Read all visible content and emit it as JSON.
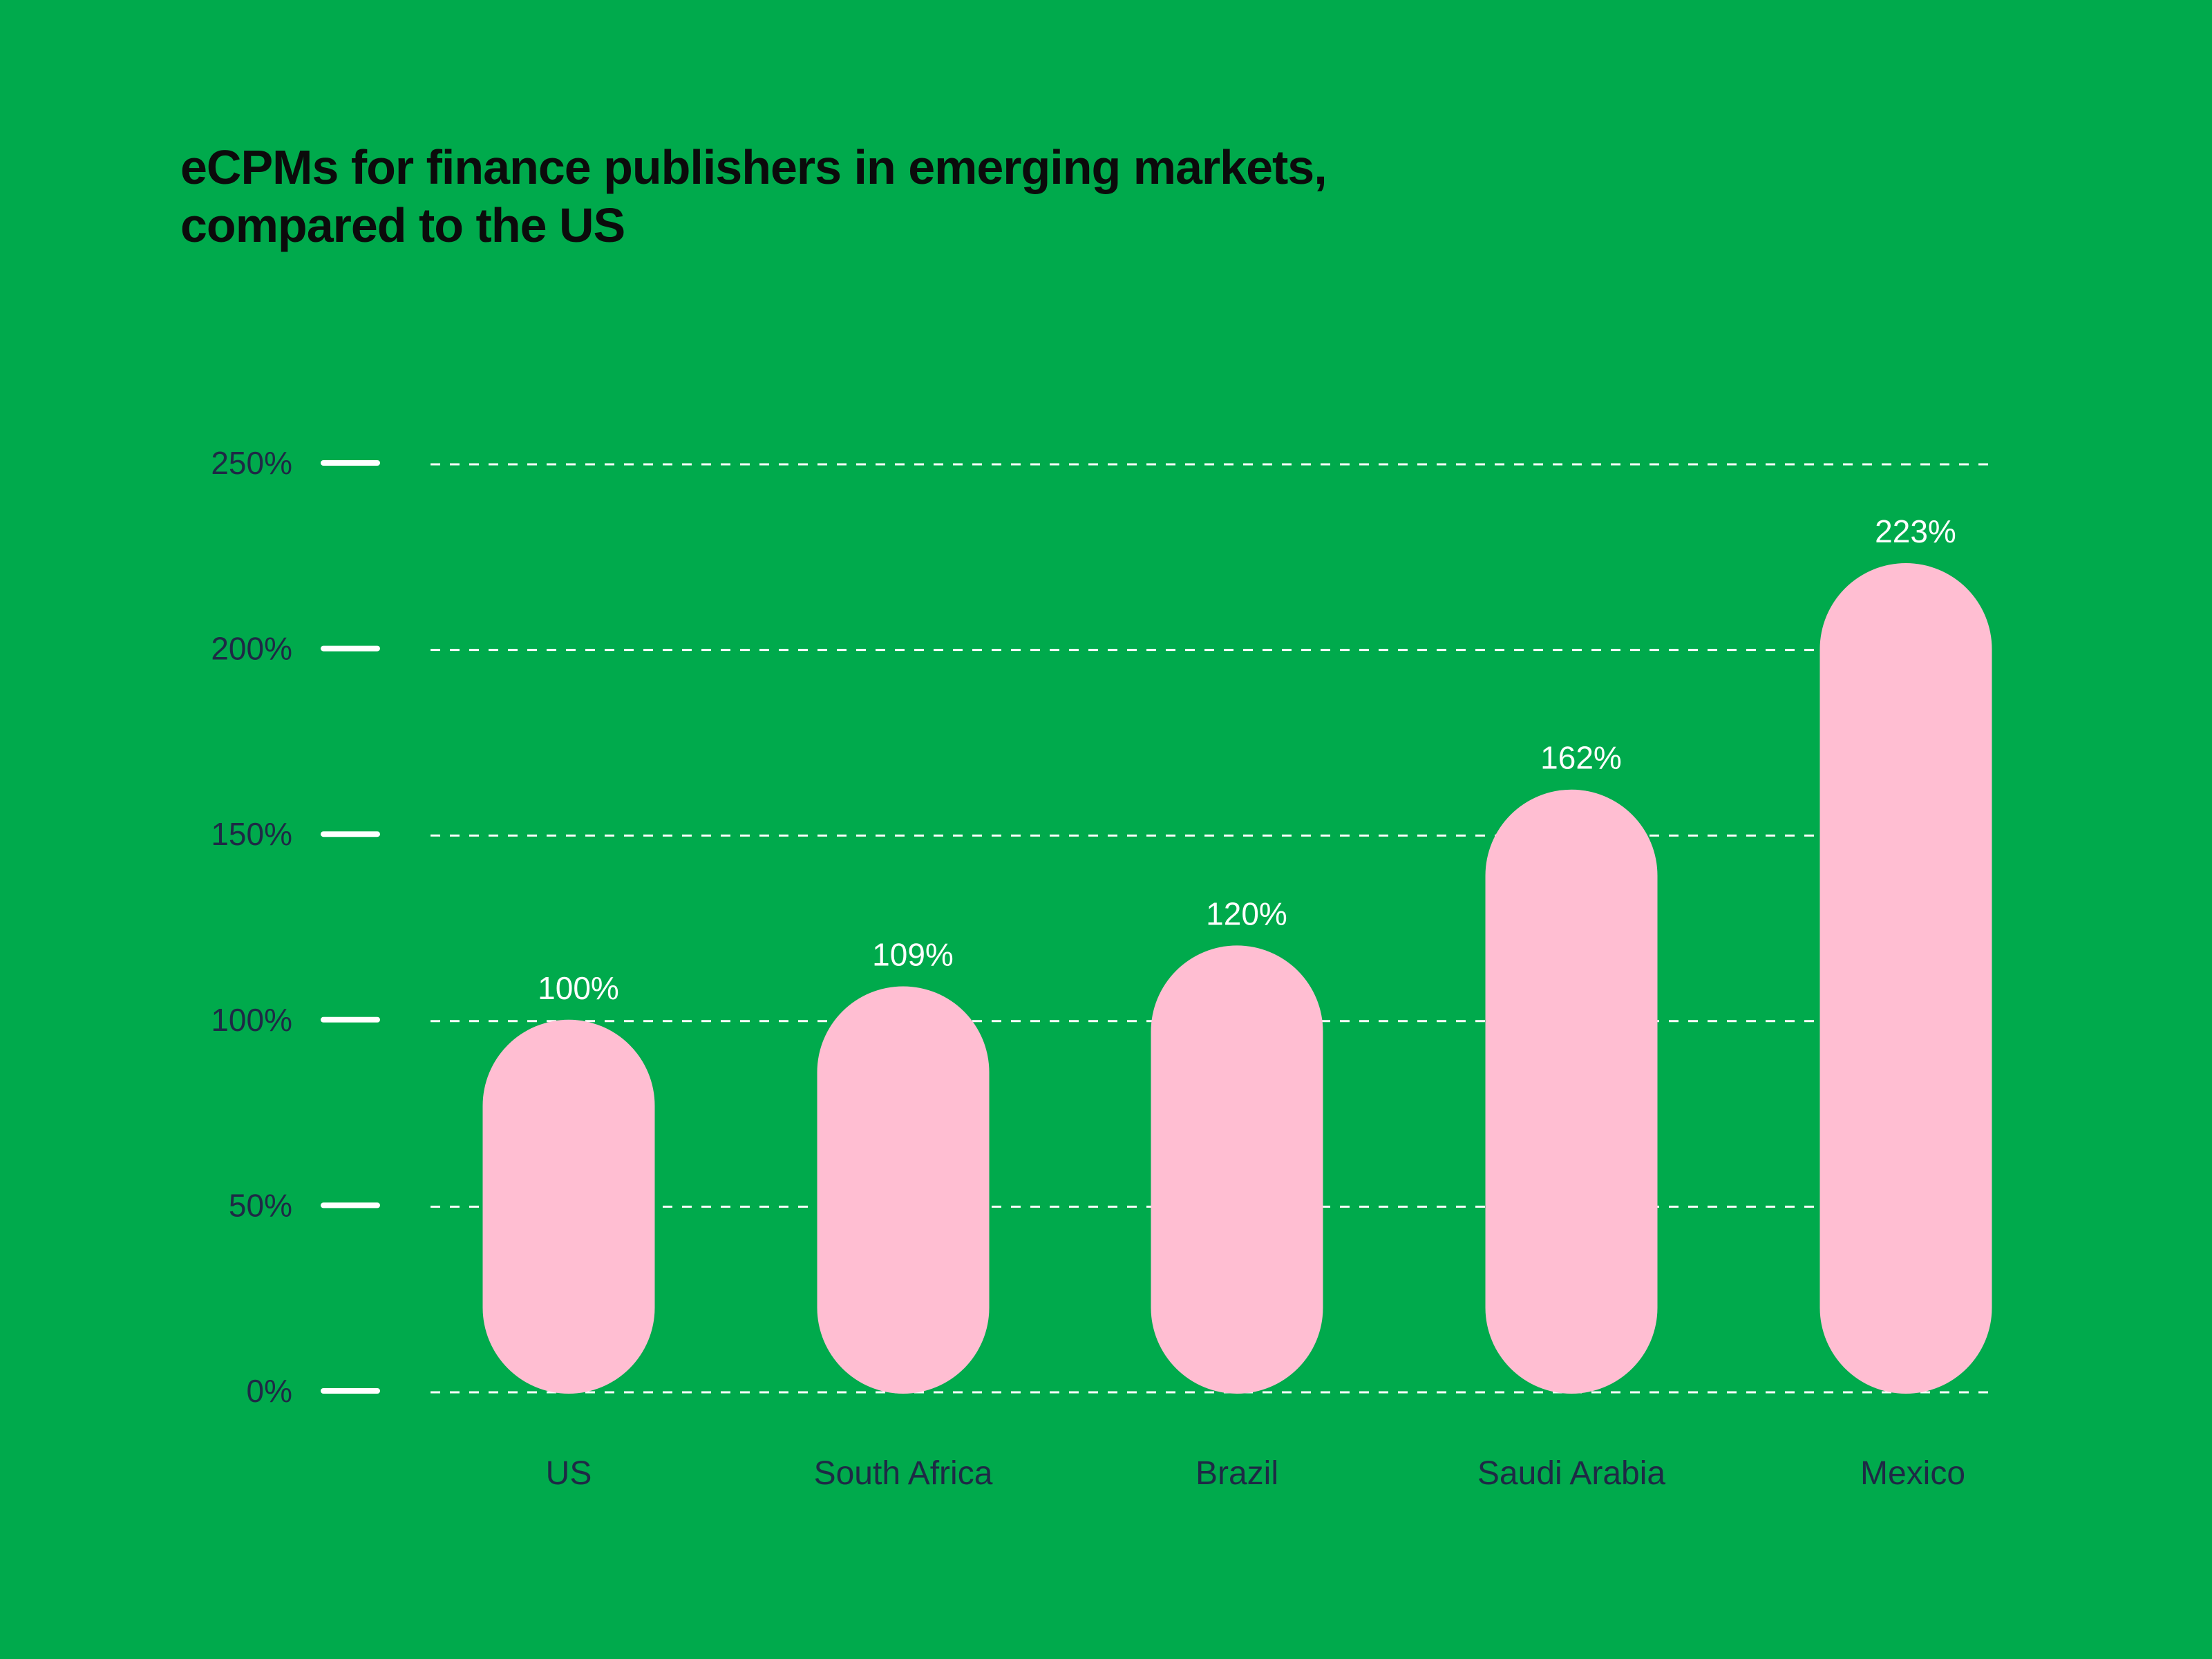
{
  "chart_data": {
    "type": "bar",
    "title": "eCPMs for finance publishers in emerging markets, compared to the US",
    "title_lines": [
      "eCPMs for finance publishers in emerging markets,",
      "compared to the US"
    ],
    "categories": [
      "US",
      "South Africa",
      "Brazil",
      "Saudi Arabia",
      "Mexico"
    ],
    "values": [
      100,
      109,
      120,
      162,
      223
    ],
    "value_labels": [
      "100%",
      "109%",
      "120%",
      "162%",
      "223%"
    ],
    "xlabel": "",
    "ylabel": "",
    "ylim": [
      0,
      250
    ],
    "yticks": [
      0,
      50,
      100,
      150,
      200,
      250
    ],
    "ytick_labels": [
      "0%",
      "50%",
      "100%",
      "150%",
      "200%",
      "250%"
    ],
    "grid": true,
    "legend": "none",
    "colors": {
      "background": "#00aa4c",
      "bar": "#ffbed2",
      "grid": "#ffffff",
      "axis_text": "#1e2a45",
      "value_text": "#ffffff"
    }
  }
}
